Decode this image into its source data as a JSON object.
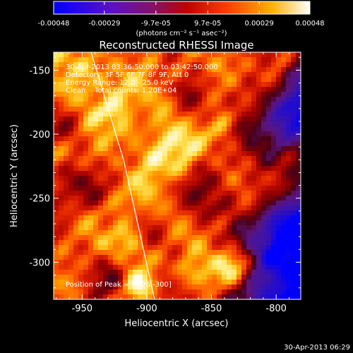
{
  "chart_data": {
    "type": "heatmap",
    "title": "Reconstructed RHESSI Image",
    "xlabel": "Heliocentric X (arcsec)",
    "ylabel": "Heliocentric Y (arcsec)",
    "x_ticks": [
      "-950",
      "-900",
      "-850",
      "-800"
    ],
    "x_tick_values": [
      -950,
      -900,
      -850,
      -800
    ],
    "y_ticks": [
      "-150",
      "-200",
      "-250",
      "-300"
    ],
    "y_tick_values": [
      -150,
      -200,
      -250,
      -300
    ],
    "xlim": [
      -972,
      -781
    ],
    "ylim": [
      -329,
      -136
    ],
    "colorbar": {
      "tick_labels": [
        "-0.00048",
        "-0.00029",
        "-9.7e-05",
        "9.7e-05",
        "0.00029",
        "0.00048"
      ],
      "tick_values": [
        -0.00048,
        -0.00029,
        -9.7e-05,
        9.7e-05,
        0.00029,
        0.00048
      ],
      "range": [
        -0.00048,
        0.00048
      ],
      "unit_label": "(photons cm⁻² s⁻¹ asec⁻²)"
    },
    "annotations": {
      "time_range": "30-Apr-2013 03:36:50.000 to 03:42:50.000",
      "detectors": "Detectors: 3F 5F 6F 7F 8F 9F, Att 0",
      "energy": "Energy Range: 12.0 - 25.0 keV",
      "clean": "Clean    Total counts: 1.20E+04",
      "peak_label": "Position of Peak = [-826,-300]"
    },
    "peak": {
      "x": -826,
      "y": -300
    },
    "limb_line": [
      {
        "x": -943,
        "y": -136
      },
      {
        "x": -918,
        "y": -220
      },
      {
        "x": -894,
        "y": -329
      }
    ],
    "footer_timestamp": "30-Apr-2013 06:29"
  }
}
